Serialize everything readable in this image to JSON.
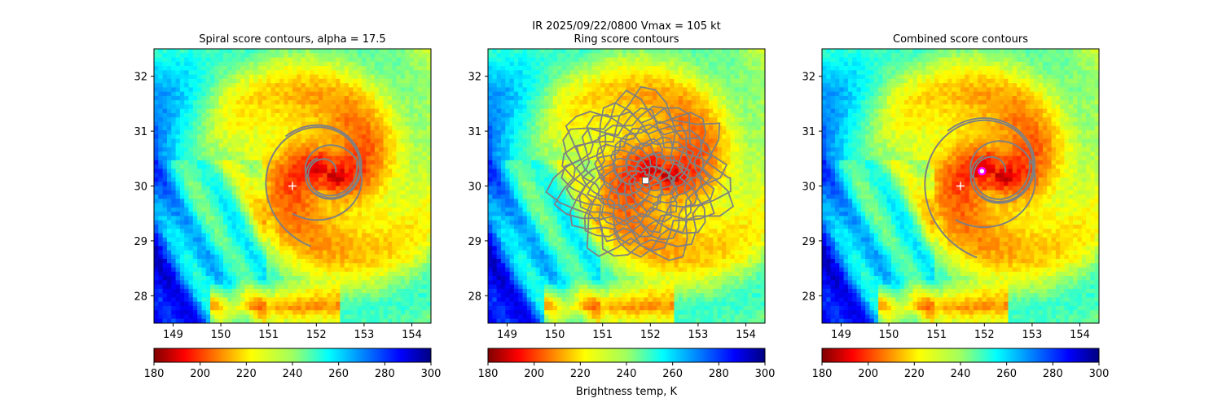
{
  "figure": {
    "suptitle_line1": "IR  2025/09/22/0800    Vmax = 105 kt",
    "colorbar_label": "Brightness temp, K"
  },
  "chart_data": [
    {
      "type": "heatmap",
      "title": "Spiral score contours, alpha = 17.5",
      "xlim": [
        148.6,
        154.4
      ],
      "ylim": [
        27.5,
        32.5
      ],
      "xticks": [
        "149",
        "150",
        "151",
        "152",
        "153",
        "154"
      ],
      "yticks": [
        "28",
        "29",
        "30",
        "31",
        "32"
      ],
      "colorbar": {
        "range": [
          180,
          300
        ],
        "ticks": [
          "180",
          "200",
          "220",
          "240",
          "260",
          "280",
          "300"
        ],
        "colormap": "jet_r"
      },
      "storm_center": [
        152.2,
        30.25
      ],
      "marker": {
        "symbol": "+",
        "color": "#ffffff",
        "lon": 151.5,
        "lat": 30.0
      },
      "contour_color": "#808080",
      "contours": "spiral"
    },
    {
      "type": "heatmap",
      "title": "Ring score contours",
      "xlim": [
        148.6,
        154.4
      ],
      "ylim": [
        27.5,
        32.5
      ],
      "xticks": [
        "149",
        "150",
        "151",
        "152",
        "153",
        "154"
      ],
      "yticks": [
        "28",
        "29",
        "30",
        "31",
        "32"
      ],
      "colorbar": {
        "range": [
          180,
          300
        ],
        "ticks": [
          "180",
          "200",
          "220",
          "240",
          "260",
          "280",
          "300"
        ],
        "colormap": "jet_r"
      },
      "storm_center": [
        152.2,
        30.25
      ],
      "marker": {
        "symbol": "square",
        "color": "#ffffff",
        "lon": 151.9,
        "lat": 30.1
      },
      "contour_color": "#808080",
      "contours": "ring"
    },
    {
      "type": "heatmap",
      "title": "Combined score contours",
      "xlim": [
        148.6,
        154.4
      ],
      "ylim": [
        27.5,
        32.5
      ],
      "xticks": [
        "149",
        "150",
        "151",
        "152",
        "153",
        "154"
      ],
      "yticks": [
        "28",
        "29",
        "30",
        "31",
        "32"
      ],
      "colorbar": {
        "range": [
          180,
          300
        ],
        "ticks": [
          "180",
          "200",
          "220",
          "240",
          "260",
          "280",
          "300"
        ],
        "colormap": "jet_r"
      },
      "storm_center": [
        152.2,
        30.25
      ],
      "marker": {
        "symbol": "+",
        "color": "#ffffff",
        "lon": 151.5,
        "lat": 30.0
      },
      "marker2": {
        "symbol": "circle",
        "color": "#ff00ff",
        "lon": 151.95,
        "lat": 30.27
      },
      "contour_color": "#808080",
      "contours": "combined"
    }
  ]
}
